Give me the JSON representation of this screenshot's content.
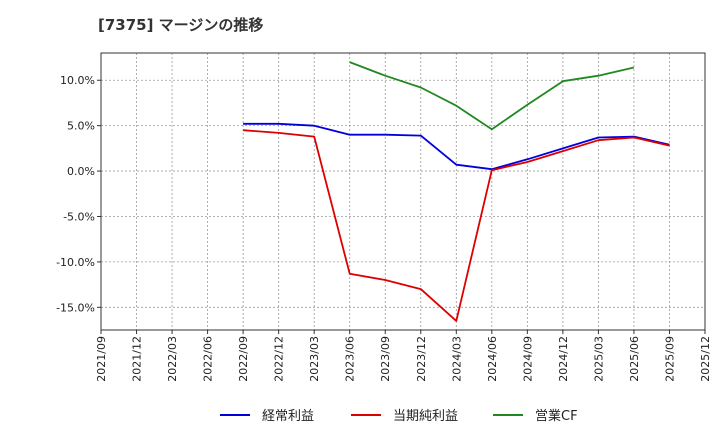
{
  "chart_data": {
    "type": "line",
    "title": "[7375]  マージンの推移",
    "xlabel": "",
    "ylabel": "",
    "ylim": [
      -17.5,
      13.0
    ],
    "y_ticks": [
      10.0,
      5.0,
      0.0,
      -5.0,
      -10.0,
      -15.0
    ],
    "y_tick_labels": [
      "10.0%",
      "5.0%",
      "0.0%",
      "-5.0%",
      "-10.0%",
      "-15.0%"
    ],
    "grid": true,
    "legend_position": "bottom",
    "categories": [
      "2021/09",
      "2021/12",
      "2022/03",
      "2022/06",
      "2022/09",
      "2022/12",
      "2023/03",
      "2023/06",
      "2023/09",
      "2023/12",
      "2024/03",
      "2024/06",
      "2024/09",
      "2024/12",
      "2025/03",
      "2025/06",
      "2025/09",
      "2025/12"
    ],
    "series": [
      {
        "name": "経常利益",
        "color": "#0000dd",
        "values": [
          null,
          null,
          null,
          null,
          5.2,
          5.2,
          5.0,
          4.0,
          4.0,
          3.9,
          0.7,
          0.2,
          1.3,
          2.5,
          3.7,
          3.8,
          2.9,
          null
        ]
      },
      {
        "name": "当期純利益",
        "color": "#dd0000",
        "values": [
          null,
          null,
          null,
          null,
          4.5,
          4.2,
          3.8,
          -11.3,
          -12.0,
          -13.0,
          -16.5,
          0.1,
          1.0,
          2.2,
          3.4,
          3.7,
          2.8,
          null
        ]
      },
      {
        "name": "営業CF",
        "color": "#228822",
        "values": [
          null,
          null,
          null,
          null,
          null,
          null,
          null,
          12.0,
          10.5,
          9.2,
          7.2,
          4.6,
          7.3,
          9.9,
          10.5,
          11.4,
          null,
          null
        ]
      }
    ]
  }
}
